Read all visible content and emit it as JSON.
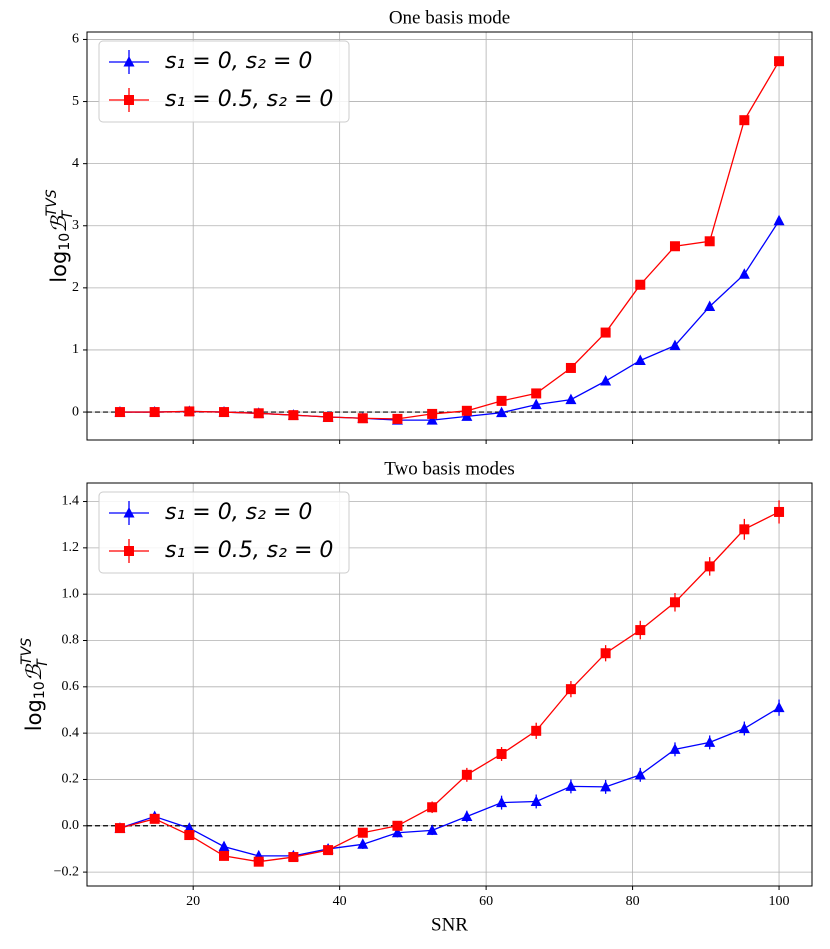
{
  "chart_data": [
    {
      "type": "line",
      "title": "One basis mode",
      "ylabel": {
        "text": "log",
        "sub": "10",
        "symbol": "ℬ",
        "subscript": "T",
        "superscript": "TVS"
      },
      "x": [
        10,
        14.74,
        19.47,
        24.21,
        28.95,
        33.68,
        38.42,
        43.16,
        47.89,
        52.63,
        57.37,
        62.11,
        66.84,
        71.58,
        76.32,
        81.05,
        85.79,
        90.53,
        95.26,
        100
      ],
      "series": [
        {
          "name": "s₁ = 0, s₂ = 0",
          "color": "#0000ff",
          "marker": "triangle",
          "values": [
            0,
            0,
            0.01,
            0,
            -0.02,
            -0.05,
            -0.08,
            -0.1,
            -0.13,
            -0.13,
            -0.07,
            -0.01,
            0.12,
            0.2,
            0.5,
            0.83,
            1.07,
            1.7,
            2.22,
            3.08
          ],
          "errors": [
            0.03,
            0.03,
            0.03,
            0.03,
            0.03,
            0.03,
            0.03,
            0.03,
            0.03,
            0.03,
            0.03,
            0.03,
            0.03,
            0.03,
            0.03,
            0.03,
            0.03,
            0.03,
            0.03,
            0.03
          ]
        },
        {
          "name": "s₁ = 0.5, s₂ = 0",
          "color": "#ff0000",
          "marker": "square",
          "values": [
            0,
            0,
            0.01,
            0,
            -0.02,
            -0.05,
            -0.08,
            -0.1,
            -0.11,
            -0.03,
            0.02,
            0.18,
            0.3,
            0.71,
            1.28,
            2.05,
            2.67,
            2.75,
            4.7,
            5.65
          ],
          "errors": [
            0.03,
            0.03,
            0.03,
            0.03,
            0.03,
            0.03,
            0.03,
            0.03,
            0.03,
            0.03,
            0.03,
            0.03,
            0.03,
            0.03,
            0.03,
            0.03,
            0.03,
            0.03,
            0.03,
            0.03
          ]
        }
      ],
      "xlim": [
        5.5,
        104.5
      ],
      "xticks": [
        20,
        40,
        60,
        80,
        100
      ],
      "show_xticklabels": false,
      "ylim": [
        -0.45,
        6.12
      ],
      "yticks": [
        0,
        1,
        2,
        3,
        4,
        5,
        6
      ],
      "hline": 0,
      "grid": true,
      "legend": "upper left"
    },
    {
      "type": "line",
      "title": "Two basis modes",
      "xlabel": "SNR",
      "ylabel": {
        "text": "log",
        "sub": "10",
        "symbol": "ℬ",
        "subscript": "T",
        "superscript": "TVS"
      },
      "x": [
        10,
        14.74,
        19.47,
        24.21,
        28.95,
        33.68,
        38.42,
        43.16,
        47.89,
        52.63,
        57.37,
        62.11,
        66.84,
        71.58,
        76.32,
        81.05,
        85.79,
        90.53,
        95.26,
        100
      ],
      "series": [
        {
          "name": "s₁ = 0, s₂ = 0",
          "color": "#0000ff",
          "marker": "triangle",
          "values": [
            -0.01,
            0.04,
            -0.01,
            -0.09,
            -0.13,
            -0.13,
            -0.1,
            -0.08,
            -0.03,
            -0.02,
            0.04,
            0.1,
            0.105,
            0.17,
            0.168,
            0.22,
            0.33,
            0.36,
            0.42,
            0.51
          ],
          "errors": [
            0.02,
            0.02,
            0.02,
            0.02,
            0.02,
            0.02,
            0.02,
            0.02,
            0.02,
            0.02,
            0.025,
            0.03,
            0.03,
            0.03,
            0.03,
            0.03,
            0.03,
            0.03,
            0.03,
            0.035
          ]
        },
        {
          "name": "s₁ = 0.5, s₂ = 0",
          "color": "#ff0000",
          "marker": "square",
          "values": [
            -0.01,
            0.03,
            -0.04,
            -0.13,
            -0.155,
            -0.135,
            -0.105,
            -0.03,
            0.0,
            0.08,
            0.22,
            0.31,
            0.41,
            0.59,
            0.745,
            0.845,
            0.965,
            1.12,
            1.28,
            1.355
          ],
          "errors": [
            0.02,
            0.02,
            0.02,
            0.02,
            0.02,
            0.02,
            0.02,
            0.02,
            0.02,
            0.025,
            0.03,
            0.03,
            0.035,
            0.035,
            0.035,
            0.04,
            0.04,
            0.04,
            0.045,
            0.05
          ]
        }
      ],
      "xlim": [
        5.5,
        104.5
      ],
      "xticks": [
        20,
        40,
        60,
        80,
        100
      ],
      "show_xticklabels": true,
      "ylim": [
        -0.26,
        1.48
      ],
      "yticks": [
        {
          "value": -0.2,
          "label": "−0.2"
        },
        {
          "value": 0,
          "label": "0.0"
        },
        {
          "value": 0.2,
          "label": "0.2"
        },
        {
          "value": 0.4,
          "label": "0.4"
        },
        {
          "value": 0.6,
          "label": "0.6"
        },
        {
          "value": 0.8,
          "label": "0.8"
        },
        {
          "value": 1.0,
          "label": "1.0"
        },
        {
          "value": 1.2,
          "label": "1.2"
        },
        {
          "value": 1.4,
          "label": "1.4"
        }
      ],
      "hline": 0,
      "grid": true,
      "legend": "upper left"
    }
  ]
}
